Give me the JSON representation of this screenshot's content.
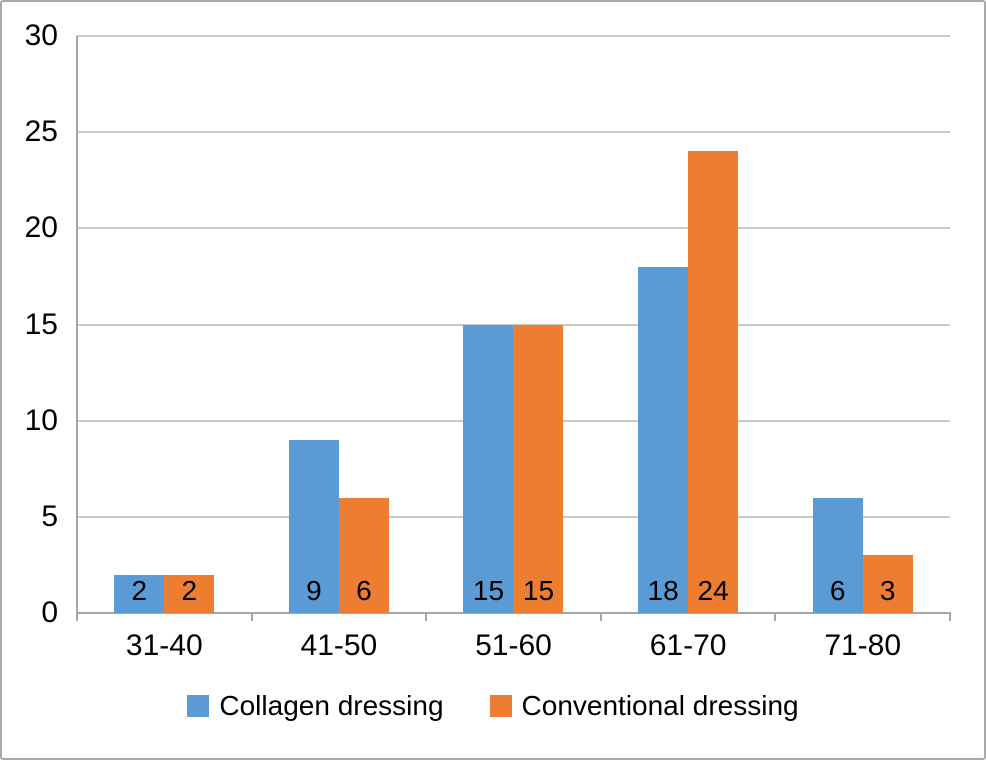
{
  "chart_data": {
    "type": "bar",
    "title": "",
    "categories": [
      "31-40",
      "41-50",
      "51-60",
      "61-70",
      "71-80"
    ],
    "series": [
      {
        "name": "Collagen dressing",
        "color": "#5B9BD5",
        "values": [
          2,
          9,
          15,
          18,
          6
        ]
      },
      {
        "name": "Conventional dressing",
        "color": "#ED7D31",
        "values": [
          2,
          6,
          15,
          24,
          3
        ]
      }
    ],
    "ylim": [
      0,
      30
    ],
    "ytick_step": 5,
    "yticks": [
      0,
      5,
      10,
      15,
      20,
      25,
      30
    ],
    "grid": true,
    "legend_position": "bottom",
    "data_labels": "inside-base",
    "data_label_color": "#000000"
  }
}
